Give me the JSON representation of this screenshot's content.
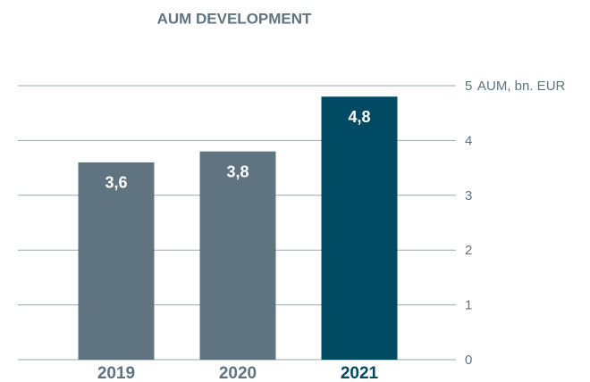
{
  "chart_data": {
    "type": "bar",
    "title": "AUM DEVELOPMENT",
    "y_label": "AUM, bn. EUR",
    "categories": [
      "2019",
      "2020",
      "2021"
    ],
    "values": [
      3.6,
      3.8,
      4.8
    ],
    "value_labels": [
      "3,6",
      "3,8",
      "4,8"
    ],
    "colors": [
      "#5f7480",
      "#5f7480",
      "#004a63"
    ],
    "ylim": [
      0,
      5
    ],
    "yticks": [
      0,
      1,
      2,
      3,
      4,
      5
    ],
    "grid": true
  }
}
